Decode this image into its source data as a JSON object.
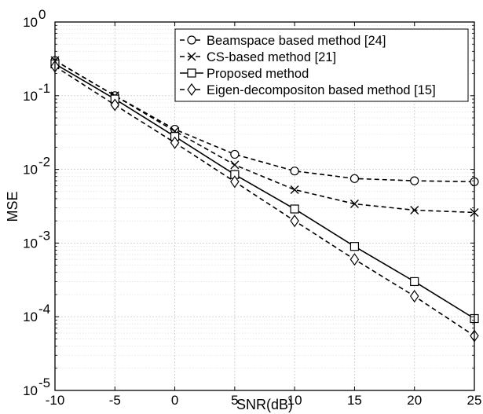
{
  "chart_data": {
    "type": "line",
    "xlabel": "SNR(dB)",
    "ylabel": "MSE",
    "xlim": [
      -10,
      25
    ],
    "ylim": [
      1e-05,
      1
    ],
    "yscale": "log",
    "grid": true,
    "legend_position": "top-right",
    "x": [
      -10,
      -5,
      0,
      5,
      10,
      15,
      20,
      25
    ],
    "x_ticks": [
      "-10",
      "-5",
      "0",
      "5",
      "10",
      "15",
      "20",
      "25"
    ],
    "y_ticks": [
      {
        "value": 1,
        "base": "10",
        "exp": "0"
      },
      {
        "value": 0.1,
        "base": "10",
        "exp": "-1"
      },
      {
        "value": 0.01,
        "base": "10",
        "exp": "-2"
      },
      {
        "value": 0.001,
        "base": "10",
        "exp": "-3"
      },
      {
        "value": 0.0001,
        "base": "10",
        "exp": "-4"
      },
      {
        "value": 1e-05,
        "base": "10",
        "exp": "-5"
      }
    ],
    "series": [
      {
        "name": "Beamspace based method [24]",
        "marker": "circle",
        "line": "dashed",
        "values": [
          0.3,
          0.1,
          0.035,
          0.016,
          0.0095,
          0.0075,
          0.007,
          0.0068
        ]
      },
      {
        "name": "CS-based method [21]",
        "marker": "x",
        "line": "dashed",
        "values": [
          0.3,
          0.1,
          0.033,
          0.0115,
          0.0053,
          0.0034,
          0.0028,
          0.0026
        ]
      },
      {
        "name": "Proposed method",
        "marker": "square",
        "line": "solid",
        "values": [
          0.27,
          0.09,
          0.028,
          0.0085,
          0.0029,
          0.0009,
          0.0003,
          9.45e-05
        ]
      },
      {
        "name": "Eigen-decompositon based method [15]",
        "marker": "diamond",
        "line": "dashed",
        "values": [
          0.25,
          0.075,
          0.023,
          0.0068,
          0.002,
          0.0006,
          0.00019,
          5.5e-05
        ]
      }
    ]
  }
}
